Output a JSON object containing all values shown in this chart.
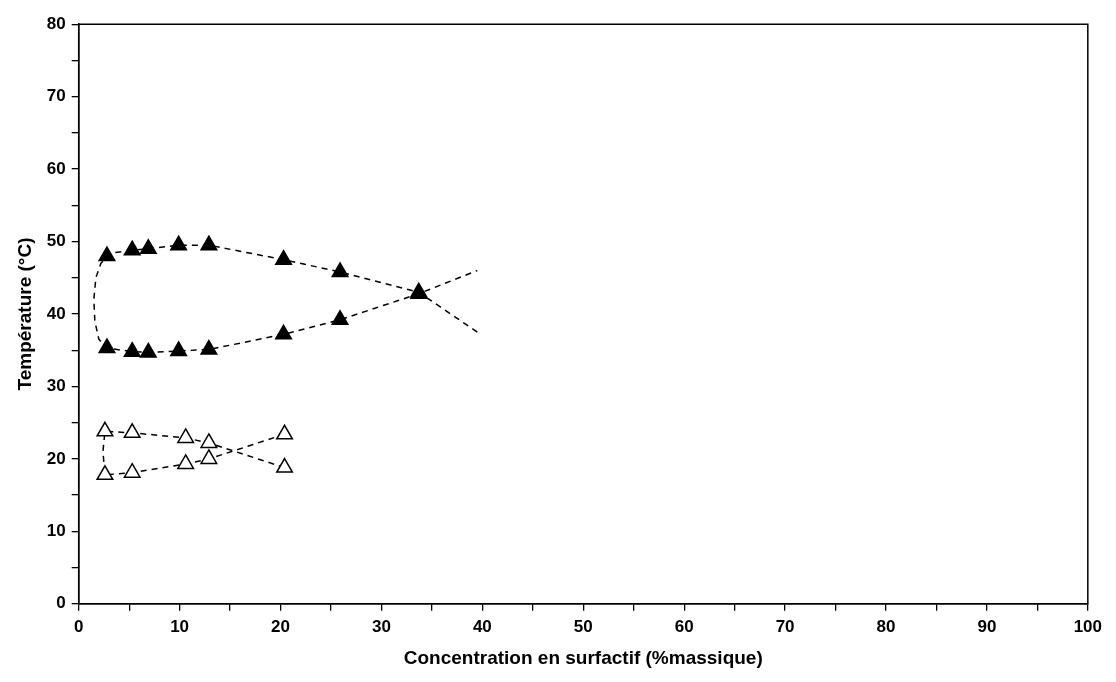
{
  "chart_data": {
    "type": "scatter",
    "xlabel": "Concentration en surfactif (%massique)",
    "ylabel": "Température (°C)",
    "xlim": [
      0,
      100
    ],
    "ylim": [
      0,
      80
    ],
    "xticks": [
      0,
      {
        "value": 5,
        "label": null
      },
      10,
      {
        "value": 15,
        "label": null
      },
      20,
      {
        "value": 25,
        "label": null
      },
      30,
      {
        "value": 35,
        "label": null
      },
      40,
      {
        "value": 45,
        "label": null
      },
      50,
      {
        "value": 55,
        "label": null
      },
      60,
      {
        "value": 65,
        "label": null
      },
      70,
      {
        "value": 75,
        "label": null
      },
      80,
      {
        "value": 85,
        "label": null
      },
      90,
      {
        "value": 95,
        "label": null
      },
      100
    ],
    "yticks": [
      0,
      {
        "value": 5,
        "label": null
      },
      10,
      {
        "value": 15,
        "label": null
      },
      20,
      {
        "value": 25,
        "label": null
      },
      30,
      {
        "value": 35,
        "label": null
      },
      40,
      {
        "value": 45,
        "label": null
      },
      50,
      {
        "value": 55,
        "label": null
      },
      60,
      {
        "value": 65,
        "label": null
      },
      70,
      {
        "value": 75,
        "label": null
      },
      80
    ],
    "grid": false,
    "legend": false,
    "marker": "triangle",
    "series": [
      {
        "type": "scatter",
        "color": "#000000",
        "x": [
          2.8,
          5.3,
          6.9,
          9.9,
          12.9,
          20.3,
          25.9,
          33.7,
          2.8,
          5.3,
          6.9,
          9.9,
          12.9,
          20.3,
          25.9,
          33.7
        ],
        "values": [
          48,
          48.8,
          49,
          49.5,
          49.5,
          47.5,
          45.8,
          43,
          35.3,
          34.8,
          34.7,
          34.9,
          35.1,
          37.2,
          39.2,
          42.8
        ]
      },
      {
        "type": "scatter",
        "color": "#ffffff",
        "x": [
          2.6,
          5.3,
          10.6,
          12.9,
          20.4,
          2.6,
          5.3,
          10.6,
          12.9,
          20.4
        ],
        "values": [
          23.8,
          23.6,
          22.9,
          22.2,
          18.8,
          17.8,
          18.1,
          19.3,
          20,
          23.4
        ]
      },
      {
        "type": "line",
        "color": "#000000",
        "marker": "none",
        "line_style": "dashed",
        "x": [
          39.5,
          33.7,
          25.9,
          20.3,
          12.9,
          9.9,
          6.9,
          5.3,
          3.2,
          2.2,
          1.7,
          1.5,
          1.6,
          2.0,
          2.8,
          5.3,
          6.9,
          9.9,
          12.9,
          20.3,
          25.9,
          33.7,
          39.5
        ],
        "values": [
          37.5,
          43,
          45.8,
          47.5,
          49.5,
          49.5,
          49,
          48.8,
          48.4,
          47,
          45,
          42,
          39,
          36.5,
          35.3,
          34.8,
          34.7,
          34.9,
          35.1,
          37.2,
          39.2,
          42.8,
          46
        ]
      },
      {
        "type": "line",
        "color": "#000000",
        "marker": "none",
        "line_style": "dashed",
        "x": [
          20.4,
          12.9,
          10.6,
          5.3,
          2.6,
          2.4,
          2.6,
          5.3,
          10.6,
          12.9,
          20.4
        ],
        "values": [
          18.8,
          22.2,
          22.9,
          23.6,
          23.8,
          21,
          17.8,
          18.1,
          19.3,
          20,
          23.4
        ]
      }
    ]
  }
}
